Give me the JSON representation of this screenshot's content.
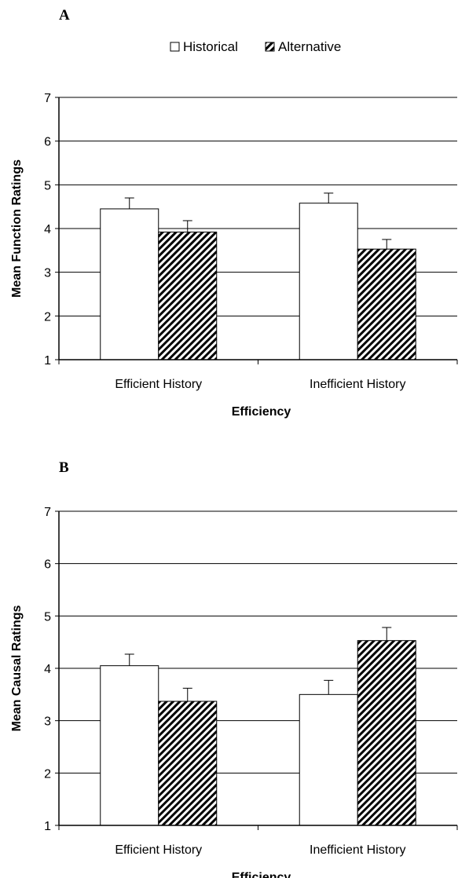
{
  "colors": {
    "historical_fill": "#ffffff",
    "alternative_hatch": "#000000",
    "axis": "#000000",
    "grid": "#000000"
  },
  "legend": {
    "historical": "Historical",
    "alternative": "Alternative"
  },
  "chart_data": [
    {
      "type": "bar",
      "panel_label": "A",
      "categories": [
        "Efficient History",
        "Inefficient History"
      ],
      "series": [
        {
          "name": "Historical",
          "values": [
            4.45,
            4.58
          ],
          "errors": [
            0.25,
            0.23
          ]
        },
        {
          "name": "Alternative",
          "values": [
            3.92,
            3.53
          ],
          "errors": [
            0.26,
            0.22
          ]
        }
      ],
      "ylim": [
        1,
        7
      ],
      "yticks": [
        "1",
        "2",
        "3",
        "4",
        "5",
        "6",
        "7"
      ],
      "ylabel": "Mean Function Ratings",
      "xlabel": "Efficiency",
      "grid": true,
      "legend_position": "top"
    },
    {
      "type": "bar",
      "panel_label": "B",
      "categories": [
        "Efficient History",
        "Inefficient History"
      ],
      "series": [
        {
          "name": "Historical",
          "values": [
            4.05,
            3.5
          ],
          "errors": [
            0.22,
            0.27
          ]
        },
        {
          "name": "Alternative",
          "values": [
            3.37,
            4.53
          ],
          "errors": [
            0.25,
            0.25
          ]
        }
      ],
      "ylim": [
        1,
        7
      ],
      "yticks": [
        "1",
        "2",
        "3",
        "4",
        "5",
        "6",
        "7"
      ],
      "ylabel": "Mean Causal Ratings",
      "xlabel": "Efficiency",
      "grid": true
    }
  ]
}
